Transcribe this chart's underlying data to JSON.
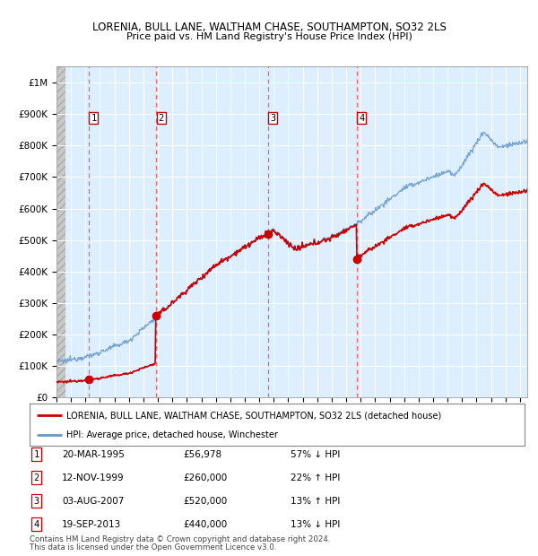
{
  "title1": "LORENIA, BULL LANE, WALTHAM CHASE, SOUTHAMPTON, SO32 2LS",
  "title2": "Price paid vs. HM Land Registry's House Price Index (HPI)",
  "ylim": [
    0,
    1050000
  ],
  "yticks": [
    0,
    100000,
    200000,
    300000,
    400000,
    500000,
    600000,
    700000,
    800000,
    900000,
    1000000
  ],
  "ytick_labels": [
    "£0",
    "£100K",
    "£200K",
    "£300K",
    "£400K",
    "£500K",
    "£600K",
    "£700K",
    "£800K",
    "£900K",
    "£1M"
  ],
  "xlim": [
    1993.0,
    2025.5
  ],
  "sales": [
    {
      "date": 1995.22,
      "price": 56978,
      "label": "1"
    },
    {
      "date": 1999.87,
      "price": 260000,
      "label": "2"
    },
    {
      "date": 2007.59,
      "price": 520000,
      "label": "3"
    },
    {
      "date": 2013.72,
      "price": 440000,
      "label": "4"
    }
  ],
  "sale_labels": [
    {
      "num": "1",
      "date": "20-MAR-1995",
      "price": "£56,978",
      "hpi": "57% ↓ HPI"
    },
    {
      "num": "2",
      "date": "12-NOV-1999",
      "price": "£260,000",
      "hpi": "22% ↑ HPI"
    },
    {
      "num": "3",
      "date": "03-AUG-2007",
      "price": "£520,000",
      "hpi": "13% ↑ HPI"
    },
    {
      "num": "4",
      "date": "19-SEP-2013",
      "price": "£440,000",
      "hpi": "13% ↓ HPI"
    }
  ],
  "legend_line1": "LORENIA, BULL LANE, WALTHAM CHASE, SOUTHAMPTON, SO32 2LS (detached house)",
  "legend_line2": "HPI: Average price, detached house, Winchester",
  "footnote1": "Contains HM Land Registry data © Crown copyright and database right 2024.",
  "footnote2": "This data is licensed under the Open Government Licence v3.0.",
  "sale_color": "#cc0000",
  "hpi_line_color": "#6699cc",
  "vline_color": "#ff5555",
  "box_color": "#cc0000",
  "bg_main_color": "#ddeeff",
  "bg_hatch_color": "#d0d0d0"
}
